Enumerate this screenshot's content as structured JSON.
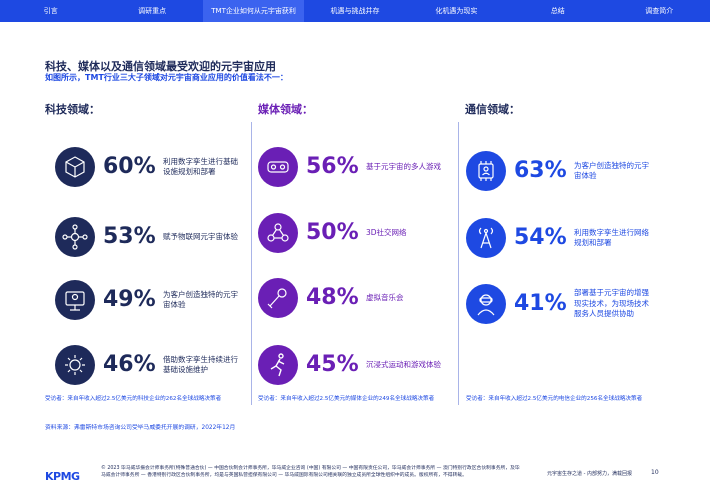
{
  "nav": [
    "引言",
    "调研重点",
    "TMT企业如何从元宇宙获利",
    "机遇与挑战并存",
    "化机遇为现实",
    "总结",
    "调查简介"
  ],
  "title": "科技、媒体以及通信领域最受欢迎的元宇宙应用",
  "subtitle": "如图所示，TMT行业三大子领域对元宇宙商业应用的价值看法不一：",
  "columns": [
    {
      "heading": "科技领域：",
      "items": [
        {
          "icon": "infrastructure-cube-icon",
          "pct": "60%",
          "desc": "利用数字孪生进行基础设施规划和部署"
        },
        {
          "icon": "iot-network-icon",
          "pct": "53%",
          "desc": "赋予物联网元宇宙体验"
        },
        {
          "icon": "customer-experience-icon",
          "pct": "49%",
          "desc": "为客户创造独特的元宇宙体验"
        },
        {
          "icon": "digital-twin-gear-icon",
          "pct": "46%",
          "desc": "借助数字孪生持续进行基础设施维护"
        }
      ],
      "note": "受访者：来自年收入超过2.5亿美元的科技企业的262名全球战略决策者"
    },
    {
      "heading": "媒体领域：",
      "items": [
        {
          "icon": "vr-headset-icon",
          "pct": "56%",
          "desc": "基于元宇宙的多人游戏"
        },
        {
          "icon": "social-network-icon",
          "pct": "50%",
          "desc": "3D社交网络"
        },
        {
          "icon": "microphone-icon",
          "pct": "48%",
          "desc": "虚拟音乐会"
        },
        {
          "icon": "runner-icon",
          "pct": "45%",
          "desc": "沉浸式运动和游戏体验"
        }
      ],
      "note": "受访者：来自年收入超过2.5亿美元的媒体企业的249名全球战略决策者"
    },
    {
      "heading": "通信领域：",
      "items": [
        {
          "icon": "chip-user-icon",
          "pct": "63%",
          "desc": "为客户创造独特的元宇宙体验"
        },
        {
          "icon": "antenna-tower-icon",
          "pct": "54%",
          "desc": "利用数字孪生进行网络规划和部署"
        },
        {
          "icon": "vr-user-icon",
          "pct": "41%",
          "desc": "部署基于元宇宙的增强现实技术，为现场技术服务人员提供协助"
        }
      ],
      "note": "受访者：来自年收入超过2.5亿美元的电信企业的256名全球战略决策者"
    }
  ],
  "source": "资料来源：弗雷斯特市场咨询公司受毕马威委托开展的调研，2022年12月",
  "footer": {
    "logo": "KPMG",
    "text": "© 2023 毕马威华振会计师事务所(特殊普通合伙) — 中国合伙制会计师事务所，毕马威企业咨询 (中国) 有限公司 — 中国有限责任公司，毕马威会计师事务所 — 澳门特别行政区合伙制事务所，及毕马威会计师事务所 — 香港特别行政区合伙制事务所，均是与英国私营担保有限公司 — 毕马威国际有限公司相关联的独立成员所全球性组织中的成员。版权所有，不得转载。",
    "right": "元宇宙生存之道 - 内部努力，满载回报",
    "page": "10"
  },
  "colors": {
    "blue": "#1e49e2",
    "navy": "#1e2a5a",
    "purple": "#6a1fb5"
  }
}
